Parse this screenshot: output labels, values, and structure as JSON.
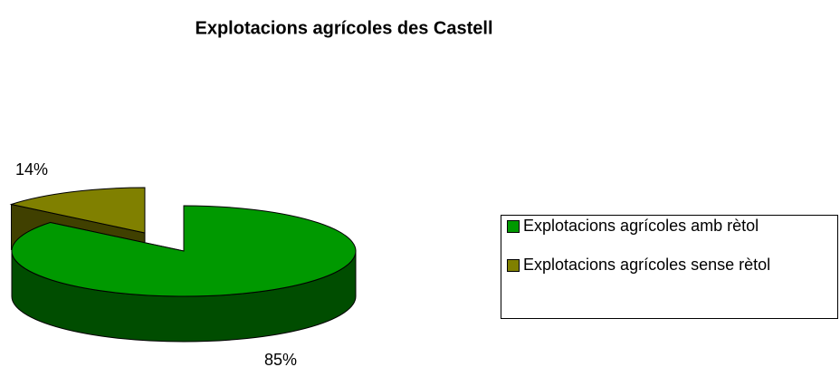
{
  "chart_data": {
    "type": "pie",
    "title": "Explotacions agrícoles des Castell",
    "categories": [
      "Explotacions agrícoles amb rètol",
      "Explotacions agrícoles sense rètol"
    ],
    "values": [
      85,
      14
    ],
    "value_labels": [
      "85%",
      "14%"
    ],
    "colors": [
      "#009900",
      "#808000"
    ]
  }
}
